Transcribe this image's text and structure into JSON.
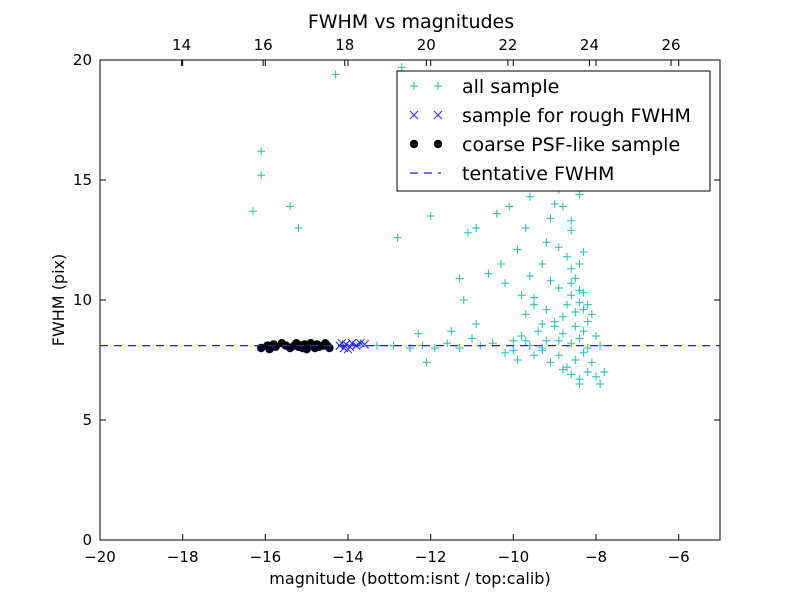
{
  "chart_data": {
    "type": "scatter",
    "title": "FWHM vs magnitudes",
    "xlabel": "magnitude (bottom:isnt / top:calib)",
    "ylabel": "FWHM (pix)",
    "xlim": [
      -20,
      -5
    ],
    "ylim": [
      0,
      20
    ],
    "top_xlim": [
      12,
      27.2
    ],
    "x_ticks": [
      -20,
      -18,
      -16,
      -14,
      -12,
      -10,
      -8,
      -6
    ],
    "x_tick_labels": [
      "−20",
      "−18",
      "−16",
      "−14",
      "−12",
      "−10",
      "−8",
      "−6"
    ],
    "top_x_ticks": [
      14,
      16,
      18,
      20,
      22,
      24,
      26
    ],
    "top_x_tick_labels": [
      "14",
      "16",
      "18",
      "20",
      "22",
      "24",
      "26"
    ],
    "y_ticks": [
      0,
      5,
      10,
      15,
      20
    ],
    "y_tick_labels": [
      "0",
      "5",
      "10",
      "15",
      "20"
    ],
    "grid": false,
    "legend_position": "top-right",
    "colors": {
      "all_sample": "#19bfbf",
      "rough_sample": "#1f1fff",
      "coarse_sample": "#000000",
      "tentative": "#1f1fff"
    },
    "series": [
      {
        "name": "all sample",
        "marker": "plus",
        "points": [
          [
            -14.3,
            19.4
          ],
          [
            -12.7,
            19.7
          ],
          [
            -16.1,
            16.2
          ],
          [
            -16.1,
            15.2
          ],
          [
            -16.3,
            13.7
          ],
          [
            -15.4,
            13.9
          ],
          [
            -15.2,
            13.0
          ],
          [
            -12.8,
            12.6
          ],
          [
            -12.0,
            13.5
          ],
          [
            -11.1,
            12.8
          ],
          [
            -10.9,
            13.0
          ],
          [
            -10.4,
            13.6
          ],
          [
            -10.1,
            13.9
          ],
          [
            -11.3,
            10.9
          ],
          [
            -11.2,
            10.0
          ],
          [
            -11.5,
            8.7
          ],
          [
            -12.3,
            8.6
          ],
          [
            -12.1,
            7.4
          ],
          [
            -10.9,
            9.0
          ],
          [
            -11.0,
            8.4
          ],
          [
            -10.6,
            11.1
          ],
          [
            -10.3,
            11.5
          ],
          [
            -10.2,
            10.7
          ],
          [
            -9.9,
            12.1
          ],
          [
            -9.7,
            13.0
          ],
          [
            -9.6,
            14.3
          ],
          [
            -9.4,
            14.7
          ],
          [
            -9.2,
            12.4
          ],
          [
            -9.0,
            14.0
          ],
          [
            -8.9,
            14.6
          ],
          [
            -8.8,
            13.9
          ],
          [
            -8.6,
            12.9
          ],
          [
            -8.5,
            15.8
          ],
          [
            -8.4,
            16.7
          ],
          [
            -8.7,
            11.8
          ],
          [
            -8.6,
            11.3
          ],
          [
            -8.5,
            10.9
          ],
          [
            -8.4,
            11.5
          ],
          [
            -9.6,
            11.0
          ],
          [
            -9.3,
            11.5
          ],
          [
            -9.1,
            10.8
          ],
          [
            -9.5,
            10.1
          ],
          [
            -9.2,
            9.6
          ],
          [
            -8.9,
            10.5
          ],
          [
            -8.7,
            9.8
          ],
          [
            -8.6,
            10.2
          ],
          [
            -8.5,
            9.5
          ],
          [
            -8.4,
            9.9
          ],
          [
            -8.3,
            10.3
          ],
          [
            -8.2,
            9.1
          ],
          [
            -8.3,
            8.7
          ],
          [
            -8.4,
            8.4
          ],
          [
            -8.5,
            8.9
          ],
          [
            -8.6,
            8.2
          ],
          [
            -8.8,
            8.6
          ],
          [
            -9.0,
            8.9
          ],
          [
            -9.2,
            8.3
          ],
          [
            -9.4,
            8.7
          ],
          [
            -9.6,
            8.1
          ],
          [
            -9.8,
            8.5
          ],
          [
            -10.0,
            7.9
          ],
          [
            -9.9,
            7.5
          ],
          [
            -9.5,
            7.7
          ],
          [
            -9.3,
            7.9
          ],
          [
            -9.1,
            7.4
          ],
          [
            -8.9,
            7.7
          ],
          [
            -8.7,
            7.2
          ],
          [
            -8.5,
            7.5
          ],
          [
            -8.3,
            7.8
          ],
          [
            -8.1,
            7.4
          ],
          [
            -8.2,
            7.0
          ],
          [
            -8.4,
            6.7
          ],
          [
            -8.6,
            6.9
          ],
          [
            -8.8,
            7.1
          ],
          [
            -8.0,
            6.8
          ],
          [
            -7.8,
            7.0
          ],
          [
            -7.9,
            6.5
          ],
          [
            -8.4,
            6.5
          ],
          [
            -8.3,
            12.0
          ],
          [
            -8.6,
            13.3
          ],
          [
            -8.9,
            12.2
          ],
          [
            -9.1,
            13.4
          ],
          [
            -8.4,
            14.4
          ],
          [
            -8.7,
            15.1
          ],
          [
            -10.5,
            8.2
          ],
          [
            -10.8,
            8.1
          ],
          [
            -11.3,
            8.0
          ],
          [
            -11.6,
            8.2
          ],
          [
            -11.9,
            8.0
          ],
          [
            -12.2,
            8.1
          ],
          [
            -12.5,
            8.0
          ],
          [
            -12.9,
            8.1
          ],
          [
            -13.3,
            8.1
          ],
          [
            -13.7,
            8.2
          ],
          [
            -10.2,
            7.8
          ],
          [
            -10.0,
            8.3
          ],
          [
            -9.7,
            8.3
          ],
          [
            -9.3,
            8.0
          ],
          [
            -8.9,
            8.3
          ],
          [
            -8.2,
            8.0
          ],
          [
            -8.0,
            8.5
          ],
          [
            -7.9,
            8.1
          ],
          [
            -8.1,
            9.4
          ],
          [
            -8.3,
            9.6
          ],
          [
            -8.8,
            9.3
          ],
          [
            -9.0,
            9.1
          ],
          [
            -9.3,
            9.0
          ],
          [
            -9.7,
            9.4
          ],
          [
            -9.5,
            9.8
          ],
          [
            -9.8,
            10.2
          ],
          [
            -8.6,
            10.7
          ],
          [
            -8.4,
            10.4
          ],
          [
            -8.2,
            9.8
          ]
        ]
      },
      {
        "name": "sample for rough FWHM",
        "marker": "x",
        "points": [
          [
            -14.2,
            8.1
          ],
          [
            -14.1,
            8.0
          ],
          [
            -14.05,
            8.15
          ],
          [
            -13.95,
            8.05
          ],
          [
            -13.9,
            8.2
          ],
          [
            -13.8,
            8.1
          ],
          [
            -13.7,
            8.2
          ],
          [
            -13.6,
            8.15
          ],
          [
            -14.15,
            8.2
          ],
          [
            -14.0,
            7.95
          ]
        ]
      },
      {
        "name": "coarse PSF-like sample",
        "marker": "circle",
        "points": [
          [
            -16.1,
            8.0
          ],
          [
            -15.95,
            8.1
          ],
          [
            -15.9,
            7.95
          ],
          [
            -15.8,
            8.15
          ],
          [
            -15.75,
            8.05
          ],
          [
            -15.6,
            8.2
          ],
          [
            -15.5,
            8.1
          ],
          [
            -15.4,
            8.0
          ],
          [
            -15.3,
            8.1
          ],
          [
            -15.2,
            8.05
          ],
          [
            -15.1,
            8.0
          ],
          [
            -15.05,
            8.15
          ],
          [
            -14.95,
            8.1
          ],
          [
            -14.9,
            8.2
          ],
          [
            -14.8,
            8.0
          ],
          [
            -14.75,
            8.15
          ],
          [
            -14.6,
            8.1
          ],
          [
            -14.55,
            8.2
          ],
          [
            -14.5,
            8.1
          ],
          [
            -14.45,
            8.0
          ],
          [
            -15.25,
            8.2
          ],
          [
            -15.0,
            7.95
          ],
          [
            -14.7,
            8.05
          ],
          [
            -15.15,
            8.1
          ]
        ]
      },
      {
        "name": "tentative FWHM",
        "marker": "dashed-line",
        "y": 8.1
      }
    ]
  }
}
